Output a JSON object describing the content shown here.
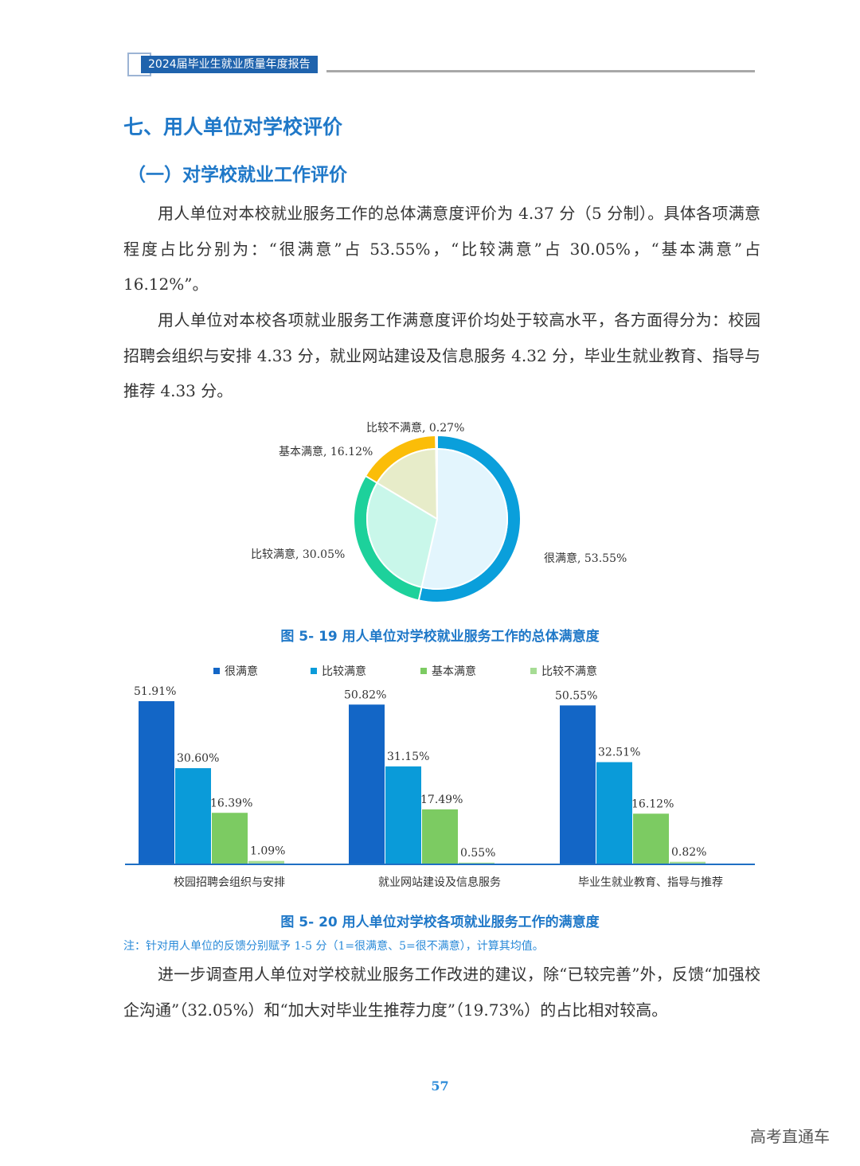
{
  "header": {
    "title": "2024届毕业生就业质量年度报告"
  },
  "section_title": "七、用人单位对学校评价",
  "subsection_title": "（一）对学校就业工作评价",
  "paragraphs": [
    "用人单位对本校就业服务工作的总体满意度评价为 4.37 分（5 分制）。具体各项满意程度占比分别为：“很满意”占 53.55%，“比较满意”占 30.05%，“基本满意”占 16.12%”。",
    "用人单位对本校各项就业服务工作满意度评价均处于较高水平，各方面得分为：校园招聘会组织与安排 4.33 分，就业网站建设及信息服务 4.32 分，毕业生就业教育、指导与推荐 4.33 分。",
    "进一步调查用人单位对学校就业服务工作改进的建议，除“已较完善”外，反馈“加强校企沟通”（32.05%）和“加大对毕业生推荐力度”（19.73%）的占比相对较高。"
  ],
  "figure_19_caption": "图 5- 19  用人单位对学校就业服务工作的总体满意度",
  "figure_20_caption": "图 5- 20  用人单位对学校各项就业服务工作的满意度",
  "figure_20_note": "注：针对用人单位的反馈分别赋予 1-5 分（1=很满意、5=很不满意），计算其均值。",
  "page_number": "57",
  "watermark": "高考直通车",
  "chart_data": [
    {
      "type": "pie",
      "style": "donut with lighter inner fill",
      "slices": [
        {
          "label": "很满意",
          "value": 53.55,
          "text": "很满意, 53.55%",
          "color": "#0a9fdb",
          "inner_color": "#e3f5fd"
        },
        {
          "label": "比较满意",
          "value": 30.05,
          "text": "比较满意, 30.05%",
          "color": "#1dd19b",
          "inner_color": "#c9f7ea"
        },
        {
          "label": "基本满意",
          "value": 16.12,
          "text": "基本满意, 16.12%",
          "color": "#fbbd08",
          "inner_color": "#e7ecc9"
        },
        {
          "label": "比较不满意",
          "value": 0.27,
          "text": "比较不满意, 0.27%",
          "color": "#9ad46a",
          "inner_color": "#e0f2d0"
        }
      ]
    },
    {
      "type": "bar",
      "categories": [
        "校园招聘会组织与安排",
        "就业网站建设及信息服务",
        "毕业生就业教育、指导与推荐"
      ],
      "legend_position": "top",
      "series": [
        {
          "name": "很满意",
          "color": "#1366c6",
          "values": [
            51.91,
            50.82,
            50.55
          ],
          "labels": [
            "51.91%",
            "50.82%",
            "50.55%"
          ]
        },
        {
          "name": "比较满意",
          "color": "#0a9bd9",
          "values": [
            30.6,
            31.15,
            32.51
          ],
          "labels": [
            "30.60%",
            "31.15%",
            "32.51%"
          ]
        },
        {
          "name": "基本满意",
          "color": "#7ccb62",
          "values": [
            16.39,
            17.49,
            16.12
          ],
          "labels": [
            "16.39%",
            "17.49%",
            "16.12%"
          ]
        },
        {
          "name": "比较不满意",
          "color": "#a6dc94",
          "values": [
            1.09,
            0.55,
            0.82
          ],
          "labels": [
            "1.09%",
            "0.55%",
            "0.82%"
          ]
        }
      ],
      "axis_color": "#1f6fc4",
      "grid": false
    }
  ]
}
